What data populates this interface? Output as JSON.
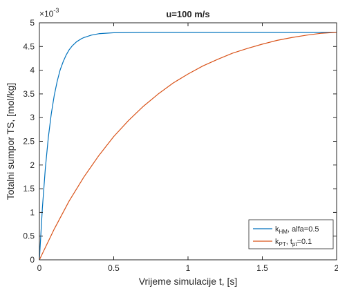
{
  "chart_data": {
    "type": "line",
    "title": "u=100 m/s",
    "xlabel": "Vrijeme simulacije t,  [s]",
    "ylabel": "Totalni sumpor TS,  [mol/kg]",
    "y_exponent_label": "×10",
    "y_exponent_power": "-3",
    "xlim": [
      0,
      2
    ],
    "ylim": [
      0,
      5
    ],
    "x_ticks": [
      0,
      0.5,
      1,
      1.5,
      2
    ],
    "x_tick_labels": [
      "0",
      "0.5",
      "1",
      "1.5",
      "2"
    ],
    "y_ticks": [
      0,
      0.5,
      1,
      1.5,
      2,
      2.5,
      3,
      3.5,
      4,
      4.5,
      5
    ],
    "y_tick_labels": [
      "0",
      "0.5",
      "1",
      "1.5",
      "2",
      "2.5",
      "3",
      "3.5",
      "4",
      "4.5",
      "5"
    ],
    "grid": false,
    "legend_position": "bottom-right",
    "series": [
      {
        "name": "k_HM, alfa=0.5",
        "legend_main": "k",
        "legend_sub": "HM",
        "legend_rest": ",  alfa=0.5",
        "color": "#0072BD",
        "x": [
          0,
          0.02,
          0.04,
          0.06,
          0.08,
          0.1,
          0.12,
          0.14,
          0.16,
          0.18,
          0.2,
          0.22,
          0.25,
          0.28,
          0.3,
          0.35,
          0.4,
          0.5,
          0.7,
          1.0,
          1.5,
          2.0
        ],
        "y": [
          0,
          1.09,
          1.93,
          2.58,
          3.08,
          3.47,
          3.77,
          4.01,
          4.18,
          4.32,
          4.43,
          4.51,
          4.6,
          4.66,
          4.69,
          4.74,
          4.77,
          4.79,
          4.8,
          4.8,
          4.8,
          4.8
        ]
      },
      {
        "name": "k_PT, t_pt=0.1",
        "legend_main": "k",
        "legend_sub": "PT",
        "legend_rest": ",  t",
        "legend_sub2": "pt",
        "legend_rest2": "=0.1",
        "color": "#D95319",
        "x": [
          0,
          0.1,
          0.2,
          0.3,
          0.4,
          0.5,
          0.6,
          0.7,
          0.8,
          0.9,
          1.0,
          1.1,
          1.2,
          1.3,
          1.4,
          1.5,
          1.6,
          1.7,
          1.8,
          1.9,
          2.0
        ],
        "y": [
          0,
          0.65,
          1.24,
          1.75,
          2.2,
          2.6,
          2.94,
          3.24,
          3.5,
          3.73,
          3.92,
          4.09,
          4.23,
          4.36,
          4.46,
          4.55,
          4.63,
          4.69,
          4.74,
          4.78,
          4.8
        ]
      }
    ]
  }
}
